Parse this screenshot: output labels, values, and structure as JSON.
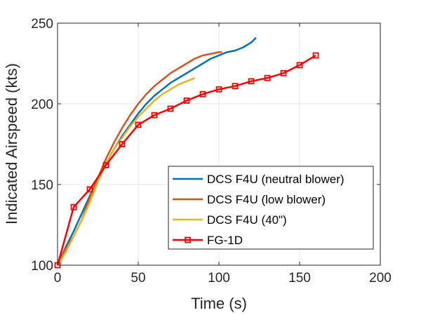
{
  "chart_data": {
    "type": "line",
    "xlabel": "Time (s)",
    "ylabel": "Indicated Airspeed (kts)",
    "xlim": [
      0,
      200
    ],
    "ylim": [
      100,
      250
    ],
    "xticks": [
      0,
      50,
      100,
      150,
      200
    ],
    "yticks": [
      100,
      150,
      200,
      250
    ],
    "grid": true,
    "legend_position": "bottom-right",
    "series": [
      {
        "name": "DCS F4U (neutral blower)",
        "color": "#0072BD",
        "marker": "none",
        "x": [
          0,
          5,
          10,
          15,
          20,
          25,
          30,
          35,
          40,
          45,
          50,
          55,
          60,
          65,
          70,
          75,
          80,
          85,
          90,
          95,
          100,
          105,
          110,
          115,
          120,
          123
        ],
        "y": [
          100,
          111,
          121,
          132,
          143,
          153,
          163,
          172,
          180,
          187,
          194,
          200,
          205,
          209,
          213,
          216,
          219,
          222,
          225,
          228,
          230,
          232,
          233,
          235,
          238,
          241
        ]
      },
      {
        "name": "DCS F4U (low blower)",
        "color": "#D95319",
        "marker": "none",
        "x": [
          0,
          5,
          10,
          15,
          20,
          25,
          30,
          35,
          40,
          45,
          50,
          55,
          60,
          65,
          70,
          75,
          80,
          85,
          90,
          95,
          100,
          102
        ],
        "y": [
          100,
          110,
          118,
          128,
          142,
          154,
          166,
          176,
          185,
          193,
          200,
          206,
          211,
          215,
          219,
          222,
          225,
          228,
          230,
          231,
          232,
          232
        ]
      },
      {
        "name": "DCS F4U (40\")",
        "color": "#EDB120",
        "marker": "none",
        "x": [
          0,
          5,
          10,
          15,
          20,
          25,
          30,
          35,
          40,
          45,
          50,
          55,
          60,
          65,
          70,
          75,
          80,
          85
        ],
        "y": [
          100,
          108,
          118,
          128,
          139,
          152,
          163,
          172,
          179,
          186,
          192,
          197,
          202,
          206,
          209,
          212,
          214,
          216
        ]
      },
      {
        "name": "FG-1D",
        "color": "#FF0000",
        "marker": "square",
        "x": [
          0,
          10,
          20,
          30,
          40,
          50,
          60,
          70,
          80,
          90,
          100,
          110,
          120,
          130,
          140,
          150,
          160
        ],
        "y": [
          100,
          136,
          147,
          162,
          175,
          187,
          193,
          197,
          202,
          206,
          209,
          211,
          214,
          216,
          219,
          224,
          230
        ]
      }
    ]
  }
}
